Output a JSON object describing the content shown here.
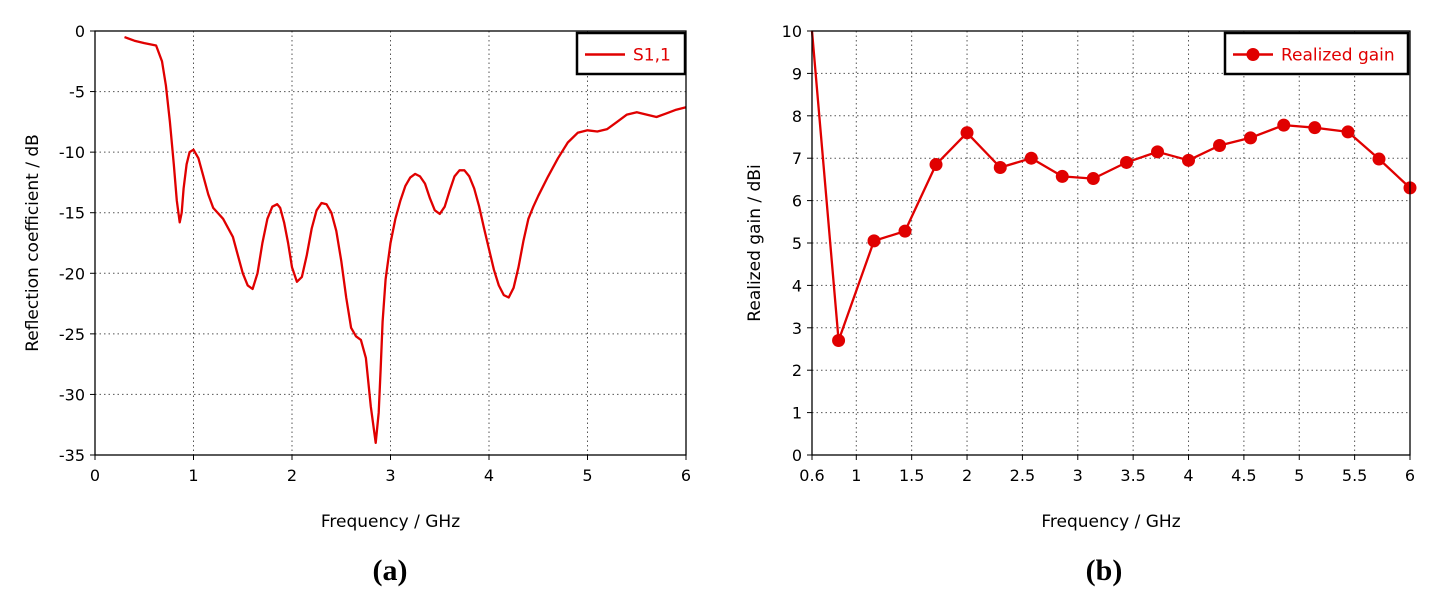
{
  "charts": {
    "a": {
      "panel_label": "(a)",
      "xlabel": "Frequency / GHz",
      "ylabel": "Reflection coefficient / dB",
      "legend": "S1,1",
      "color": "#e00000"
    },
    "b": {
      "panel_label": "(b)",
      "xlabel": "Frequency / GHz",
      "ylabel": "Realized gain / dBi",
      "legend": "Realized gain",
      "color": "#e00000"
    }
  },
  "chart_data": [
    {
      "type": "line",
      "xlabel": "Frequency / GHz",
      "ylabel": "Reflection coefficient / dB",
      "xlim": [
        0,
        6
      ],
      "ylim": [
        -35,
        0
      ],
      "xticks": [
        0,
        1,
        2,
        3,
        4,
        5,
        6
      ],
      "yticks": [
        0,
        -5,
        -10,
        -15,
        -20,
        -25,
        -30,
        -35
      ],
      "grid": true,
      "legend_position": "top-right",
      "series": [
        {
          "name": "S1,1",
          "color": "#e00000",
          "x": [
            0.3,
            0.4,
            0.5,
            0.62,
            0.68,
            0.72,
            0.76,
            0.8,
            0.83,
            0.86,
            0.88,
            0.9,
            0.93,
            0.96,
            1.0,
            1.05,
            1.1,
            1.15,
            1.2,
            1.3,
            1.4,
            1.45,
            1.5,
            1.55,
            1.6,
            1.65,
            1.7,
            1.75,
            1.8,
            1.85,
            1.88,
            1.92,
            1.96,
            2.0,
            2.05,
            2.1,
            2.15,
            2.2,
            2.25,
            2.3,
            2.35,
            2.4,
            2.45,
            2.5,
            2.55,
            2.6,
            2.65,
            2.7,
            2.75,
            2.8,
            2.85,
            2.88,
            2.9,
            2.92,
            2.95,
            3.0,
            3.05,
            3.1,
            3.15,
            3.2,
            3.25,
            3.3,
            3.35,
            3.4,
            3.45,
            3.5,
            3.55,
            3.6,
            3.65,
            3.7,
            3.75,
            3.8,
            3.85,
            3.9,
            3.95,
            4.0,
            4.05,
            4.1,
            4.15,
            4.2,
            4.25,
            4.3,
            4.35,
            4.4,
            4.45,
            4.5,
            4.6,
            4.7,
            4.8,
            4.9,
            5.0,
            5.1,
            5.2,
            5.3,
            5.4,
            5.5,
            5.6,
            5.7,
            5.8,
            5.9,
            6.0
          ],
          "y": [
            -0.5,
            -0.8,
            -1.0,
            -1.2,
            -2.5,
            -4.5,
            -7.5,
            -11.0,
            -14.0,
            -15.8,
            -15.0,
            -13.0,
            -11.0,
            -10.0,
            -9.8,
            -10.5,
            -12.0,
            -13.5,
            -14.6,
            -15.5,
            -17.0,
            -18.5,
            -20.0,
            -21.0,
            -21.3,
            -20.0,
            -17.5,
            -15.5,
            -14.5,
            -14.3,
            -14.6,
            -15.8,
            -17.5,
            -19.5,
            -20.7,
            -20.3,
            -18.5,
            -16.3,
            -14.8,
            -14.2,
            -14.3,
            -15.0,
            -16.5,
            -19.0,
            -22.0,
            -24.5,
            -25.2,
            -25.5,
            -27.0,
            -31.0,
            -34.0,
            -31.5,
            -28.0,
            -24.0,
            -20.5,
            -17.5,
            -15.5,
            -14.0,
            -12.8,
            -12.1,
            -11.8,
            -12.0,
            -12.6,
            -13.8,
            -14.8,
            -15.1,
            -14.5,
            -13.2,
            -12.0,
            -11.5,
            -11.5,
            -12.0,
            -13.0,
            -14.5,
            -16.3,
            -18.0,
            -19.7,
            -21.0,
            -21.8,
            -22.0,
            -21.2,
            -19.5,
            -17.3,
            -15.5,
            -14.5,
            -13.6,
            -12.0,
            -10.5,
            -9.2,
            -8.4,
            -8.2,
            -8.3,
            -8.1,
            -7.5,
            -6.9,
            -6.7,
            -6.9,
            -7.1,
            -6.8,
            -6.5,
            -6.3
          ]
        }
      ]
    },
    {
      "type": "line",
      "xlabel": "Frequency / GHz",
      "ylabel": "Realized gain / dBi",
      "xlim": [
        0.6,
        6
      ],
      "ylim": [
        0,
        10
      ],
      "xticks": [
        0.6,
        1,
        1.5,
        2,
        2.5,
        3,
        3.5,
        4,
        4.5,
        5,
        5.5,
        6
      ],
      "yticks": [
        0,
        1,
        2,
        3,
        4,
        5,
        6,
        7,
        8,
        9,
        10
      ],
      "grid": true,
      "legend_position": "top-right",
      "series": [
        {
          "name": "Realized gain",
          "color": "#e00000",
          "markers": true,
          "x": [
            0.6,
            0.84,
            1.16,
            1.44,
            1.72,
            2.0,
            2.3,
            2.58,
            2.86,
            3.14,
            3.44,
            3.72,
            4.0,
            4.28,
            4.56,
            4.86,
            5.14,
            5.44,
            5.72,
            6.0
          ],
          "y": [
            10.0,
            2.7,
            5.05,
            5.28,
            6.85,
            7.6,
            6.78,
            7.0,
            6.57,
            6.52,
            6.9,
            7.15,
            6.95,
            7.3,
            7.48,
            7.78,
            7.72,
            7.62,
            6.98,
            6.3
          ],
          "marker_shown": [
            false,
            true,
            true,
            true,
            true,
            true,
            true,
            true,
            true,
            true,
            true,
            true,
            true,
            true,
            true,
            true,
            true,
            true,
            true,
            true
          ]
        }
      ]
    }
  ]
}
